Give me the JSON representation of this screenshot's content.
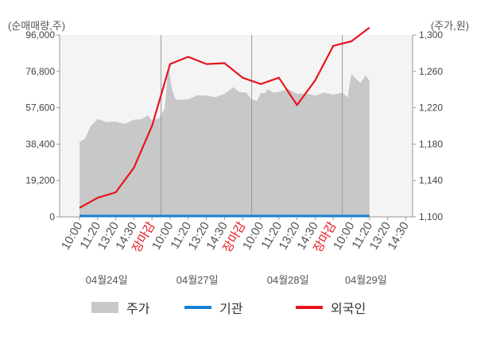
{
  "units": {
    "left": "(순매매량,주)",
    "right": "(주가,원)"
  },
  "legend": [
    {
      "label": "주가",
      "color": "#c8c8c8",
      "kind": "area"
    },
    {
      "label": "기관",
      "color": "#1a7fd1",
      "kind": "line"
    },
    {
      "label": "외국인",
      "color": "#e8141e",
      "kind": "line"
    }
  ],
  "chart_data": {
    "type": "line",
    "left_axis": {
      "ticks": [
        "0",
        "19,200",
        "38,400",
        "57,600",
        "76,800",
        "96,000"
      ],
      "values": [
        0,
        19200,
        38400,
        57600,
        76800,
        96000
      ],
      "range": [
        0,
        96000
      ]
    },
    "right_axis": {
      "ticks": [
        "1,100",
        "1,140",
        "1,180",
        "1,220",
        "1,260",
        "1,300"
      ],
      "values": [
        1100,
        1140,
        1180,
        1220,
        1260,
        1300
      ],
      "range": [
        1100,
        1300
      ]
    },
    "x_tick_labels": [
      "10:00",
      "11:20",
      "13:20",
      "14:30",
      "장마감",
      "10:00",
      "11:20",
      "13:20",
      "14:30",
      "장마감",
      "10:00",
      "11:20",
      "13:20",
      "14:30",
      "장마감",
      "10:00",
      "11:20",
      "13:20",
      "14:30"
    ],
    "x_tick_red": [
      false,
      false,
      false,
      false,
      true,
      false,
      false,
      false,
      false,
      true,
      false,
      false,
      false,
      false,
      true,
      false,
      false,
      false,
      false
    ],
    "date_labels": [
      {
        "label": "04월24일",
        "slot": 1.5
      },
      {
        "label": "04월27일",
        "slot": 6.5
      },
      {
        "label": "04월28일",
        "slot": 11.5
      },
      {
        "label": "04월29일",
        "slot": 15.8
      }
    ],
    "day_boundaries": [
      4.5,
      9.5,
      14.5
    ],
    "series": [
      {
        "name": "주가",
        "kind": "area",
        "color": "#c8c8c8",
        "x": [
          0,
          0.3,
          0.6,
          1,
          1.5,
          2,
          2.5,
          3,
          3.4,
          3.8,
          4,
          4.4,
          4.7,
          4.8,
          4.9,
          5.1,
          5.3,
          5.6,
          6,
          6.5,
          7,
          7.5,
          8,
          8.5,
          8.8,
          9.2,
          9.5,
          9.8,
          10,
          10.2,
          10.4,
          10.7,
          11,
          11.5,
          12,
          12.5,
          13,
          13.5,
          14,
          14.5,
          14.8,
          14.9,
          15,
          15.2,
          15.5,
          15.8,
          16
        ],
        "values": [
          1183,
          1185,
          1200,
          1207,
          1205,
          1204,
          1203,
          1206,
          1208,
          1211,
          1206,
          1208,
          1220,
          1240,
          1266,
          1240,
          1230,
          1228,
          1230,
          1233,
          1234,
          1231,
          1236,
          1242,
          1238,
          1236,
          1230,
          1227,
          1237,
          1235,
          1241,
          1236,
          1238,
          1240,
          1236,
          1235,
          1234,
          1236,
          1235,
          1236,
          1232,
          1245,
          1258,
          1252,
          1248,
          1255,
          1250
        ]
      },
      {
        "name": "기관",
        "kind": "line",
        "color": "#1a7fd1",
        "x": [
          0,
          16
        ],
        "values": [
          1101,
          1101
        ]
      },
      {
        "name": "외국인",
        "kind": "line",
        "color": "#e8141e",
        "x": [
          0,
          1,
          2,
          3,
          4,
          5,
          6,
          7,
          8,
          9,
          10,
          11,
          12,
          13,
          14,
          15,
          16
        ],
        "values": [
          1110,
          1121,
          1127,
          1154,
          1200,
          1268,
          1276,
          1268,
          1269,
          1253,
          1246,
          1253,
          1223,
          1250,
          1288,
          1293,
          1308
        ]
      }
    ]
  }
}
